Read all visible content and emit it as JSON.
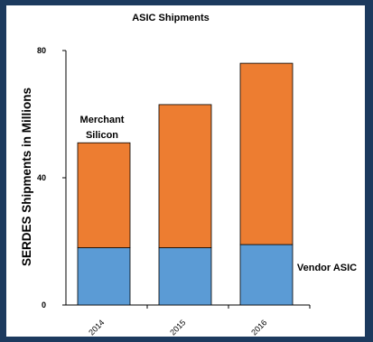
{
  "chart_data": {
    "type": "bar",
    "stacked": true,
    "title": "ASIC Shipments",
    "ylabel": "SERDES Shipments in Millions",
    "xlabel": "",
    "categories": [
      "2014",
      "2015",
      "2016"
    ],
    "ylim": [
      0,
      80
    ],
    "yticks": [
      0,
      40,
      80
    ],
    "grid": false,
    "series": [
      {
        "name": "Vendor ASIC",
        "color": "#5b9bd5",
        "values": [
          18,
          18,
          19
        ]
      },
      {
        "name": "Merchant Silicon",
        "color": "#ed7d31",
        "values": [
          33,
          45,
          57
        ]
      }
    ],
    "annotations": {
      "merchant_line1": "Merchant",
      "merchant_line2": "Silicon",
      "vendor": "Vendor ASIC"
    }
  }
}
